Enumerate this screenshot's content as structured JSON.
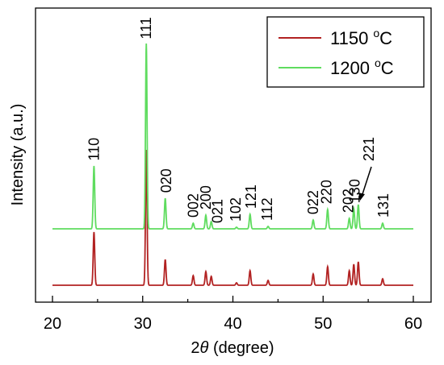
{
  "chart_data": {
    "type": "line",
    "xlabel_prefix": "2",
    "xlabel_symbol": "θ",
    "xlabel_suffix": " (degree)",
    "ylabel": "Intensity (a.u.)",
    "xlim": [
      20,
      60
    ],
    "x_ticks": [
      20,
      30,
      40,
      50,
      60
    ],
    "y_ticks_labeled": false,
    "grid": false,
    "legend_placement": "top-right",
    "series": [
      {
        "name_value": "1150",
        "name_sup": "o",
        "name_unit": "C",
        "color": "#b22222",
        "baseline": 0,
        "peaks": [
          {
            "x": 24.6,
            "height": 66
          },
          {
            "x": 30.4,
            "height": 168
          },
          {
            "x": 32.5,
            "height": 32
          },
          {
            "x": 35.6,
            "height": 12
          },
          {
            "x": 37.0,
            "height": 17
          },
          {
            "x": 37.6,
            "height": 11
          },
          {
            "x": 40.4,
            "height": 3
          },
          {
            "x": 41.9,
            "height": 18
          },
          {
            "x": 43.9,
            "height": 6
          },
          {
            "x": 48.9,
            "height": 14
          },
          {
            "x": 50.5,
            "height": 23
          },
          {
            "x": 52.9,
            "height": 18
          },
          {
            "x": 53.4,
            "height": 26
          },
          {
            "x": 53.9,
            "height": 29
          },
          {
            "x": 56.6,
            "height": 8
          }
        ]
      },
      {
        "name_value": "1200",
        "name_sup": "o",
        "name_unit": "C",
        "color": "#5fdc5f",
        "baseline": 70,
        "peaks": [
          {
            "x": 24.6,
            "height": 78
          },
          {
            "x": 30.4,
            "height": 230
          },
          {
            "x": 32.5,
            "height": 38
          },
          {
            "x": 35.6,
            "height": 7
          },
          {
            "x": 37.0,
            "height": 17
          },
          {
            "x": 37.6,
            "height": 9
          },
          {
            "x": 40.4,
            "height": 2
          },
          {
            "x": 41.9,
            "height": 18
          },
          {
            "x": 43.9,
            "height": 3
          },
          {
            "x": 48.9,
            "height": 11
          },
          {
            "x": 50.5,
            "height": 24
          },
          {
            "x": 52.9,
            "height": 13
          },
          {
            "x": 53.4,
            "height": 25
          },
          {
            "x": 53.9,
            "height": 30
          },
          {
            "x": 56.6,
            "height": 7
          }
        ]
      }
    ],
    "annotations": [
      {
        "text": "110",
        "x": 24.6
      },
      {
        "text": "111",
        "x": 30.4
      },
      {
        "text": "020",
        "x": 32.6
      },
      {
        "text": "002",
        "x": 35.6
      },
      {
        "text": "200",
        "x": 37.0
      },
      {
        "text": "021",
        "x": 38.3
      },
      {
        "text": "102",
        "x": 40.3
      },
      {
        "text": "121",
        "x": 42.0
      },
      {
        "text": "112",
        "x": 43.8
      },
      {
        "text": "022",
        "x": 48.9
      },
      {
        "text": "220",
        "x": 50.4
      },
      {
        "text": "202",
        "x": 52.8
      },
      {
        "text": "130",
        "x": 53.5
      },
      {
        "text": "221",
        "x": 55.1
      },
      {
        "text": "131",
        "x": 56.7
      }
    ]
  }
}
